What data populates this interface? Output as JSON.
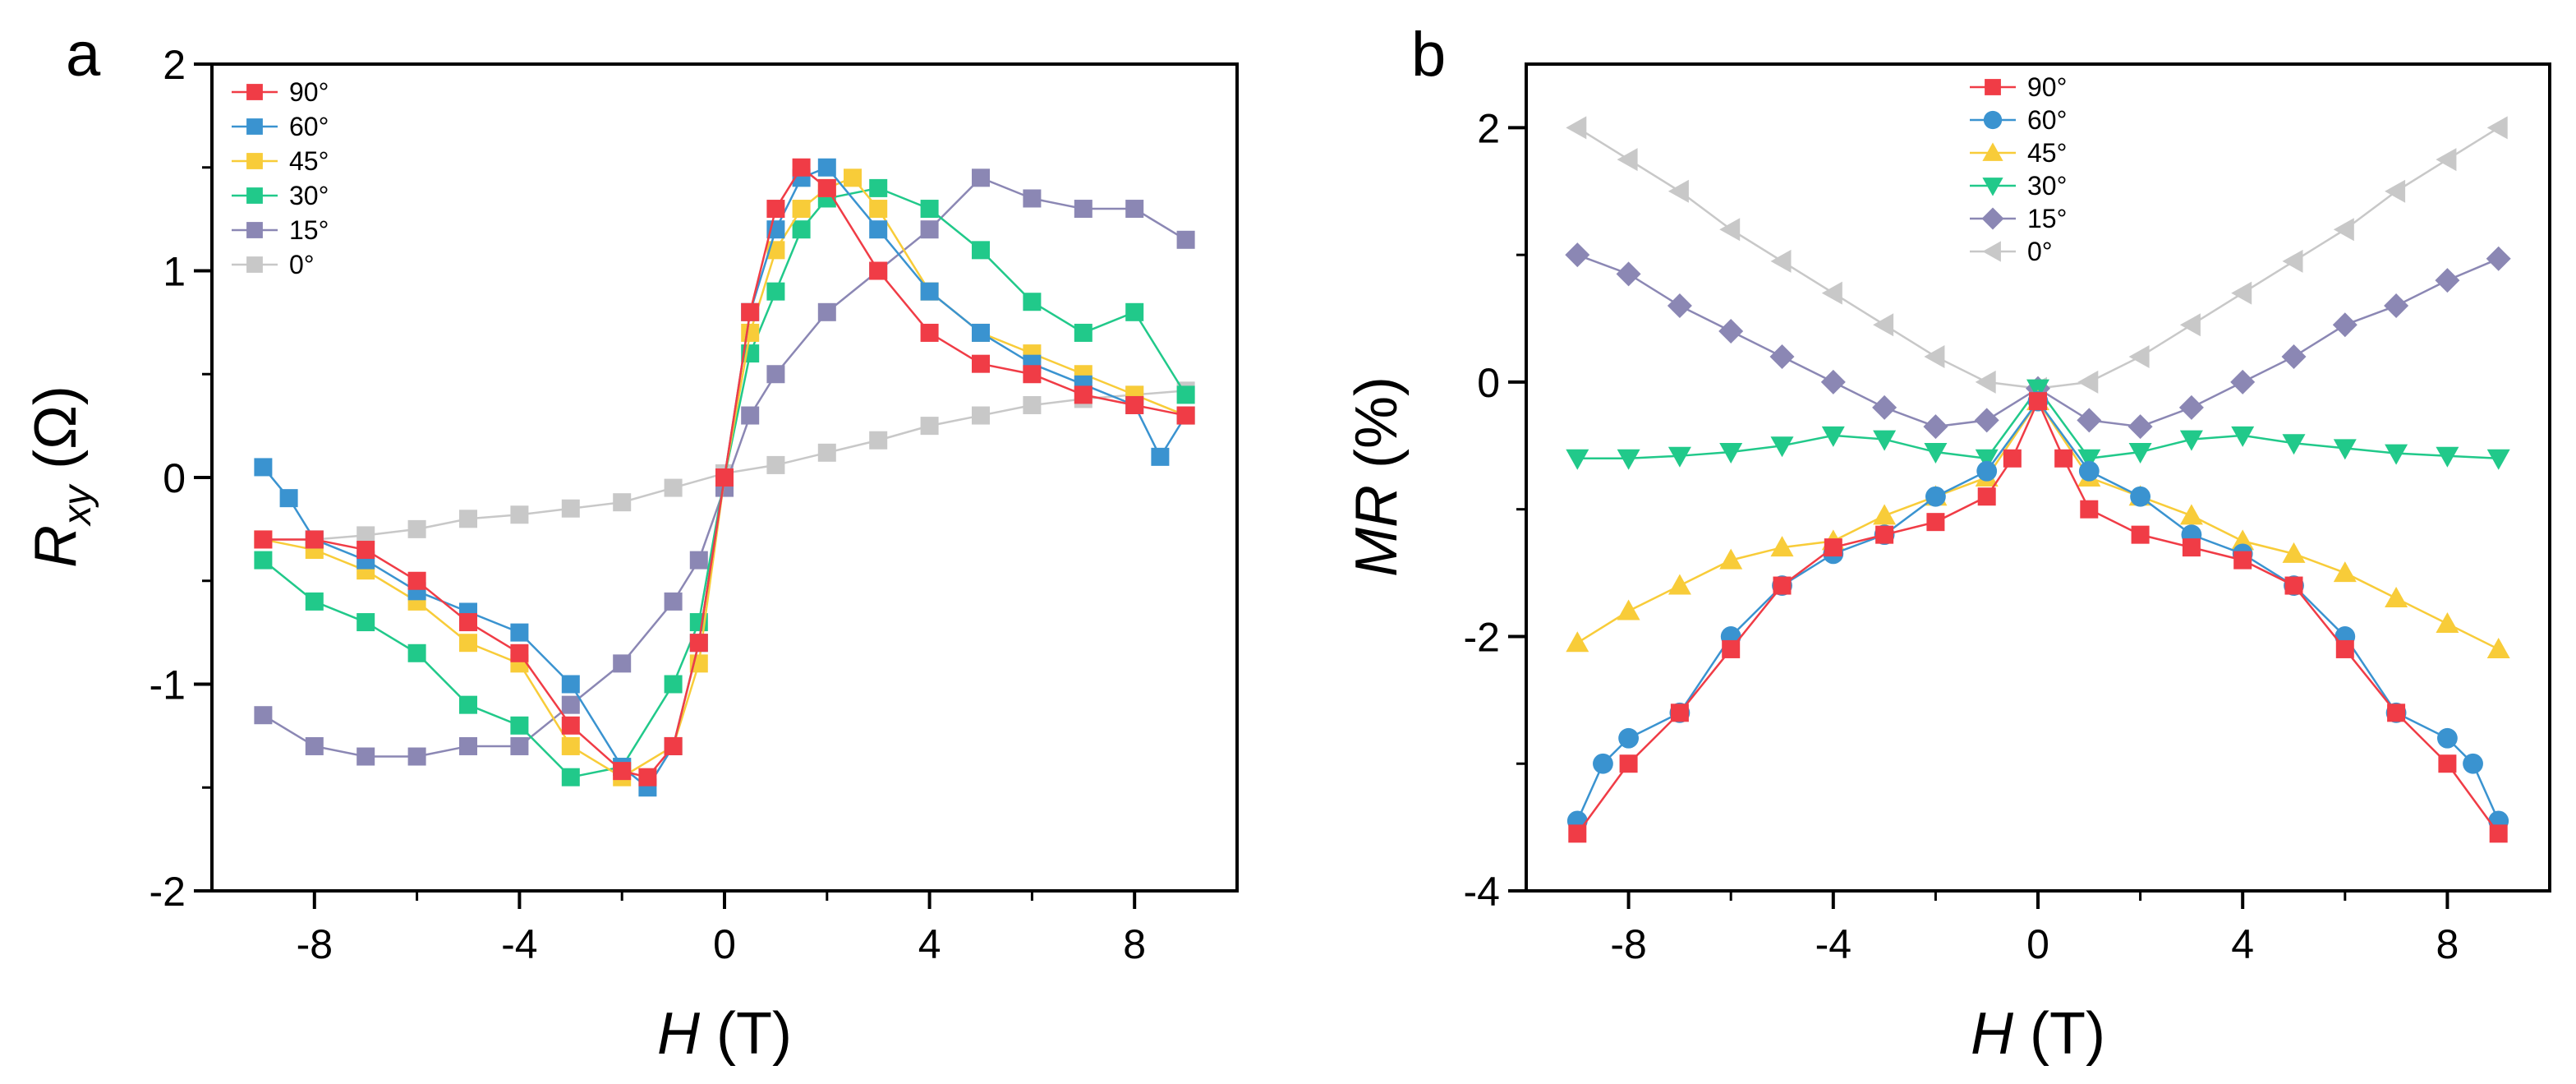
{
  "chart_data": [
    {
      "type": "scatter",
      "panel_label": "a",
      "title": "",
      "xlabel": {
        "italic": "H",
        "rest": " (T)"
      },
      "ylabel": {
        "italic": "R",
        "sub": "xy",
        "rest": " (Ω)"
      },
      "xlim": [
        -10,
        10
      ],
      "ylim": [
        -2,
        2
      ],
      "xticks": [
        -8,
        -4,
        0,
        4,
        8
      ],
      "yticks": [
        -2,
        -1,
        0,
        1,
        2
      ],
      "tick_labels_x": [
        "-8",
        "-4",
        "0",
        "4",
        "8"
      ],
      "tick_labels_y": [
        "-2",
        "-1",
        "0",
        "1",
        "2"
      ],
      "grid": false,
      "legend_position": "top-left",
      "series": [
        {
          "name": "90°",
          "color": "#f03c46",
          "marker": "square",
          "x": [
            -9,
            -8,
            -7,
            -6,
            -5,
            -4,
            -3,
            -2,
            -1.5,
            -1,
            -0.5,
            0,
            0.5,
            1,
            1.5,
            2,
            3,
            4,
            5,
            6,
            7,
            8,
            9
          ],
          "y": [
            -0.3,
            -0.3,
            -0.35,
            -0.5,
            -0.7,
            -0.85,
            -1.2,
            -1.42,
            -1.45,
            -1.3,
            -0.8,
            0,
            0.8,
            1.3,
            1.5,
            1.4,
            1.0,
            0.7,
            0.55,
            0.5,
            0.4,
            0.35,
            0.3
          ]
        },
        {
          "name": "60°",
          "color": "#3a93d0",
          "marker": "square",
          "x": [
            -9,
            -8.5,
            -8,
            -7,
            -6,
            -5,
            -4,
            -3,
            -2,
            -1.5,
            -1,
            -0.5,
            0,
            0.5,
            1,
            1.5,
            2,
            3,
            4,
            5,
            6,
            7,
            8,
            8.5,
            9
          ],
          "y": [
            0.05,
            -0.1,
            -0.3,
            -0.4,
            -0.55,
            -0.65,
            -0.75,
            -1.0,
            -1.4,
            -1.5,
            -1.3,
            -0.8,
            0,
            0.8,
            1.2,
            1.45,
            1.5,
            1.2,
            0.9,
            0.7,
            0.55,
            0.45,
            0.35,
            0.1,
            0.3
          ]
        },
        {
          "name": "45°",
          "color": "#f8cc39",
          "marker": "square",
          "x": [
            -9,
            -8,
            -7,
            -6,
            -5,
            -4,
            -3,
            -2,
            -1,
            -0.5,
            0,
            0.5,
            1,
            1.5,
            2,
            2.5,
            3,
            4,
            5,
            6,
            7,
            8,
            9
          ],
          "y": [
            -0.3,
            -0.35,
            -0.45,
            -0.6,
            -0.8,
            -0.9,
            -1.3,
            -1.45,
            -1.3,
            -0.9,
            0,
            0.7,
            1.1,
            1.3,
            1.4,
            1.45,
            1.3,
            0.9,
            0.7,
            0.6,
            0.5,
            0.4,
            0.3
          ]
        },
        {
          "name": "30°",
          "color": "#21c98a",
          "marker": "square",
          "x": [
            -9,
            -8,
            -7,
            -6,
            -5,
            -4,
            -3,
            -2,
            -1,
            -0.5,
            0,
            0.5,
            1,
            1.5,
            2,
            3,
            4,
            5,
            6,
            7,
            8,
            9
          ],
          "y": [
            -0.4,
            -0.6,
            -0.7,
            -0.85,
            -1.1,
            -1.2,
            -1.45,
            -1.4,
            -1.0,
            -0.7,
            0,
            0.6,
            0.9,
            1.2,
            1.35,
            1.4,
            1.3,
            1.1,
            0.85,
            0.7,
            0.8,
            0.4
          ]
        },
        {
          "name": "15°",
          "color": "#8b87b4",
          "marker": "square",
          "x": [
            -9,
            -8,
            -7,
            -6,
            -5,
            -4,
            -3,
            -2,
            -1,
            -0.5,
            0,
            0.5,
            1,
            2,
            3,
            4,
            5,
            6,
            7,
            8,
            9
          ],
          "y": [
            -1.15,
            -1.3,
            -1.35,
            -1.35,
            -1.3,
            -1.3,
            -1.1,
            -0.9,
            -0.6,
            -0.4,
            -0.05,
            0.3,
            0.5,
            0.8,
            1.0,
            1.2,
            1.45,
            1.35,
            1.3,
            1.3,
            1.15
          ]
        },
        {
          "name": "0°",
          "color": "#c8c8c8",
          "marker": "square",
          "x": [
            -9,
            -8,
            -7,
            -6,
            -5,
            -4,
            -3,
            -2,
            -1,
            0,
            1,
            2,
            3,
            4,
            5,
            6,
            7,
            8,
            9
          ],
          "y": [
            -0.3,
            -0.3,
            -0.28,
            -0.25,
            -0.2,
            -0.18,
            -0.15,
            -0.12,
            -0.05,
            0.02,
            0.06,
            0.12,
            0.18,
            0.25,
            0.3,
            0.35,
            0.38,
            0.4,
            0.42
          ]
        }
      ]
    },
    {
      "type": "scatter",
      "panel_label": "b",
      "title": "",
      "xlabel": {
        "italic": "H",
        "rest": " (T)"
      },
      "ylabel": {
        "italic": "MR",
        "sub": "",
        "rest": " (%)"
      },
      "xlim": [
        -10,
        10
      ],
      "ylim": [
        -4,
        2.5
      ],
      "xticks": [
        -8,
        -4,
        0,
        4,
        8
      ],
      "yticks": [
        -4,
        -2,
        0,
        2
      ],
      "tick_labels_x": [
        "-8",
        "-4",
        "0",
        "4",
        "8"
      ],
      "tick_labels_y": [
        "-4",
        "-2",
        "0",
        "2"
      ],
      "grid": false,
      "legend_position": "top-center",
      "series": [
        {
          "name": "90°",
          "color": "#f03c46",
          "marker": "square",
          "x": [
            -9,
            -8,
            -7,
            -6,
            -5,
            -4,
            -3,
            -2,
            -1,
            -0.5,
            0,
            0.5,
            1,
            2,
            3,
            4,
            5,
            6,
            7,
            8,
            9
          ],
          "y": [
            -3.55,
            -3.0,
            -2.6,
            -2.1,
            -1.6,
            -1.3,
            -1.2,
            -1.1,
            -0.9,
            -0.6,
            -0.15,
            -0.6,
            -1.0,
            -1.2,
            -1.3,
            -1.4,
            -1.6,
            -2.1,
            -2.6,
            -3.0,
            -3.55
          ]
        },
        {
          "name": "60°",
          "color": "#3a93d0",
          "marker": "circle",
          "x": [
            -9,
            -8.5,
            -8,
            -7,
            -6,
            -5,
            -4,
            -3,
            -2,
            -1,
            0,
            1,
            2,
            3,
            4,
            5,
            6,
            7,
            8,
            8.5,
            9
          ],
          "y": [
            -3.45,
            -3.0,
            -2.8,
            -2.6,
            -2.0,
            -1.6,
            -1.35,
            -1.2,
            -0.9,
            -0.7,
            -0.15,
            -0.7,
            -0.9,
            -1.2,
            -1.35,
            -1.6,
            -2.0,
            -2.6,
            -2.8,
            -3.0,
            -3.45
          ]
        },
        {
          "name": "45°",
          "color": "#f8cc39",
          "marker": "triangle-up",
          "x": [
            -9,
            -8,
            -7,
            -6,
            -5,
            -4,
            -3,
            -2,
            -1,
            0,
            1,
            2,
            3,
            4,
            5,
            6,
            7,
            8,
            9
          ],
          "y": [
            -2.05,
            -1.8,
            -1.6,
            -1.4,
            -1.3,
            -1.25,
            -1.05,
            -0.9,
            -0.75,
            -0.15,
            -0.75,
            -0.9,
            -1.05,
            -1.25,
            -1.35,
            -1.5,
            -1.7,
            -1.9,
            -2.1
          ]
        },
        {
          "name": "30°",
          "color": "#21c98a",
          "marker": "triangle-down",
          "x": [
            -9,
            -8,
            -7,
            -6,
            -5,
            -4,
            -3,
            -2,
            -1,
            0,
            1,
            2,
            3,
            4,
            5,
            6,
            7,
            8,
            9
          ],
          "y": [
            -0.6,
            -0.6,
            -0.58,
            -0.55,
            -0.5,
            -0.42,
            -0.45,
            -0.55,
            -0.6,
            -0.05,
            -0.6,
            -0.55,
            -0.45,
            -0.42,
            -0.48,
            -0.52,
            -0.56,
            -0.58,
            -0.6
          ]
        },
        {
          "name": "15°",
          "color": "#8b87b4",
          "marker": "diamond",
          "x": [
            -9,
            -8,
            -7,
            -6,
            -5,
            -4,
            -3,
            -2,
            -1,
            0,
            1,
            2,
            3,
            4,
            5,
            6,
            7,
            8,
            9
          ],
          "y": [
            1.0,
            0.85,
            0.6,
            0.4,
            0.2,
            0.0,
            -0.2,
            -0.35,
            -0.3,
            -0.05,
            -0.3,
            -0.35,
            -0.2,
            0.0,
            0.2,
            0.45,
            0.6,
            0.8,
            0.97
          ]
        },
        {
          "name": "0°",
          "color": "#c8c8c8",
          "marker": "triangle-left",
          "x": [
            -9,
            -8,
            -7,
            -6,
            -5,
            -4,
            -3,
            -2,
            -1,
            0,
            1,
            2,
            3,
            4,
            5,
            6,
            7,
            8,
            9
          ],
          "y": [
            2.0,
            1.75,
            1.5,
            1.2,
            0.95,
            0.7,
            0.45,
            0.2,
            0.0,
            -0.05,
            0.0,
            0.2,
            0.45,
            0.7,
            0.95,
            1.2,
            1.5,
            1.75,
            2.0
          ]
        }
      ]
    }
  ]
}
